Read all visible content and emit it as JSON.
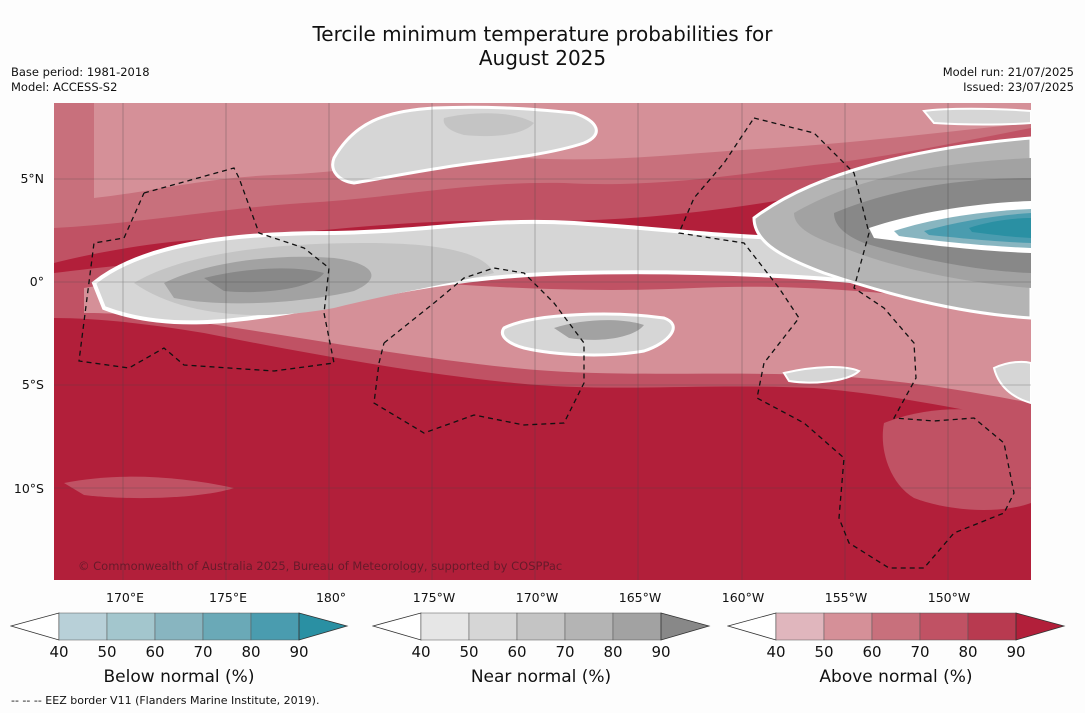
{
  "title_line1": "Tercile minimum temperature probabilities for",
  "title_line2": "August 2025",
  "base_period": "Base period: 1981-2018",
  "model": "Model: ACCESS-S2",
  "model_run": "Model run: 21/07/2025",
  "issued": "Issued: 23/07/2025",
  "copyright": "© Commonwealth of Australia 2025, Bureau of Meteorology, supported by COSPPac",
  "lat_labels": [
    "5°N",
    "0°",
    "5°S",
    "10°S"
  ],
  "lon_labels": [
    "170°E",
    "175°E",
    "180°",
    "175°W",
    "170°W",
    "165°W",
    "160°W",
    "155°W",
    "150°W"
  ],
  "colorbars": [
    {
      "label": "Below normal (%)",
      "ticks": [
        "40",
        "50",
        "60",
        "70",
        "80",
        "90"
      ],
      "colors": [
        "#ffffff",
        "#b8d0d8",
        "#a3c6cd",
        "#88b5c0",
        "#6aa9b7",
        "#4a9caf",
        "#2a90a3"
      ]
    },
    {
      "label": "Near normal (%)",
      "ticks": [
        "40",
        "50",
        "60",
        "70",
        "80",
        "90"
      ],
      "colors": [
        "#ffffff",
        "#e6e6e6",
        "#d6d6d6",
        "#c4c4c4",
        "#b4b4b4",
        "#a2a2a2",
        "#888888"
      ]
    },
    {
      "label": "Above normal (%)",
      "ticks": [
        "40",
        "50",
        "60",
        "70",
        "80",
        "90"
      ],
      "colors": [
        "#ffffff",
        "#e0b6bd",
        "#d59098",
        "#c8707c",
        "#c05264",
        "#b83a50",
        "#b21f3a"
      ]
    }
  ],
  "footer": "-- -- -- EEZ border V11 (Flanders Marine Institute, 2019).",
  "colors": {
    "above_max": "#b21f3a",
    "near_max": "#888888",
    "below_max": "#2a90a3"
  }
}
